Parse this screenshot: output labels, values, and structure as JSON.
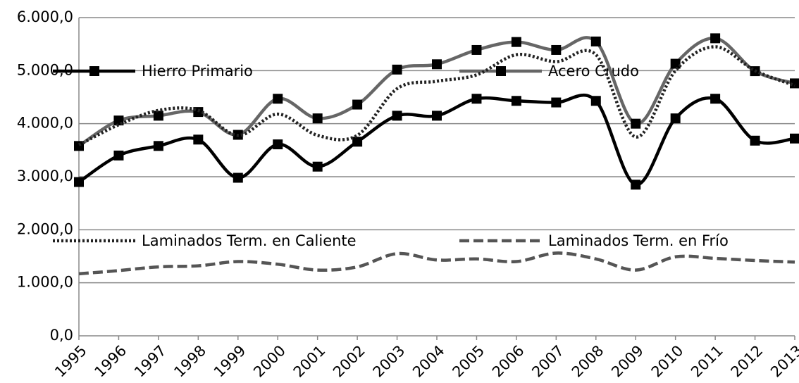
{
  "chart_data": {
    "type": "line",
    "categories": [
      "1995",
      "1996",
      "1997",
      "1998",
      "1999",
      "2000",
      "2001",
      "2002",
      "2003",
      "2004",
      "2005",
      "2006",
      "2007",
      "2008",
      "2009",
      "2010",
      "2011",
      "2012",
      "2013"
    ],
    "series": [
      {
        "name": "Hierro Primario",
        "color": "#000000",
        "style": "solid",
        "marker": true,
        "values": [
          2900,
          3400,
          3580,
          3700,
          2980,
          3610,
          3190,
          3660,
          4150,
          4150,
          4470,
          4430,
          4400,
          4430,
          2850,
          4100,
          4470,
          3680,
          3720
        ]
      },
      {
        "name": "Acero Crudo",
        "color": "#666666",
        "style": "solid",
        "marker": true,
        "values": [
          3580,
          4060,
          4150,
          4220,
          3790,
          4470,
          4100,
          4360,
          5020,
          5120,
          5390,
          5540,
          5390,
          5550,
          4000,
          5130,
          5610,
          4990,
          4760
        ]
      },
      {
        "name": "Laminados Term. en Caliente",
        "color": "#222222",
        "style": "dotted",
        "marker": false,
        "values": [
          3600,
          3980,
          4250,
          4250,
          3780,
          4180,
          3780,
          3780,
          4660,
          4800,
          4920,
          5300,
          5170,
          5300,
          3750,
          5000,
          5450,
          5000,
          4720
        ]
      },
      {
        "name": "Laminados Term. en Frío",
        "color": "#555555",
        "style": "dashed",
        "marker": false,
        "values": [
          1170,
          1230,
          1300,
          1320,
          1400,
          1350,
          1240,
          1300,
          1550,
          1430,
          1450,
          1400,
          1560,
          1450,
          1240,
          1490,
          1460,
          1420,
          1390
        ]
      }
    ],
    "ylim": [
      0,
      6000
    ],
    "yticks": [
      {
        "value": 0,
        "label": "0,0"
      },
      {
        "value": 1000,
        "label": "1.000,0"
      },
      {
        "value": 2000,
        "label": "2.000,0"
      },
      {
        "value": 3000,
        "label": "3.000,0"
      },
      {
        "value": 4000,
        "label": "4.000,0"
      },
      {
        "value": 5000,
        "label": "5.000,0"
      },
      {
        "value": 6000,
        "label": "6.000,0"
      }
    ],
    "grid": true
  }
}
